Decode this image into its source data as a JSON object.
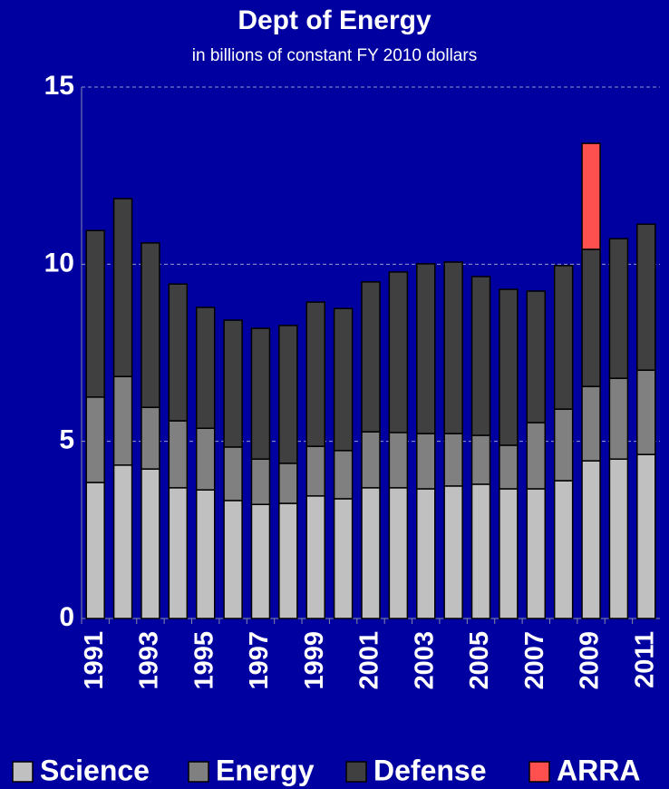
{
  "chart_data": {
    "type": "bar",
    "stacked": true,
    "title": "Dept of Energy",
    "subtitle": "in billions of constant FY 2010 dollars",
    "categories": [
      "1991",
      null,
      "1993",
      null,
      "1995",
      null,
      "1997",
      null,
      "1999",
      null,
      "2001",
      null,
      "2003",
      null,
      "2005",
      null,
      "2007",
      null,
      "2009",
      null,
      "2011"
    ],
    "series": [
      {
        "name": "Science",
        "color": "#c0c0c0",
        "values": [
          3.84,
          4.33,
          4.22,
          3.69,
          3.63,
          3.33,
          3.22,
          3.25,
          3.46,
          3.38,
          3.69,
          3.69,
          3.66,
          3.74,
          3.79,
          3.66,
          3.66,
          3.89,
          4.45,
          4.5,
          4.63
        ]
      },
      {
        "name": "Energy",
        "color": "#808080",
        "values": [
          2.41,
          2.5,
          1.74,
          1.89,
          1.74,
          1.51,
          1.28,
          1.13,
          1.4,
          1.36,
          1.58,
          1.56,
          1.56,
          1.48,
          1.38,
          1.23,
          1.87,
          2.02,
          2.1,
          2.28,
          2.38
        ]
      },
      {
        "name": "Defense",
        "color": "#404040",
        "values": [
          4.7,
          5.02,
          4.64,
          3.86,
          3.41,
          3.58,
          3.69,
          3.89,
          4.07,
          4.01,
          4.23,
          4.53,
          4.79,
          4.84,
          4.48,
          4.4,
          3.71,
          4.05,
          3.87,
          3.94,
          4.12
        ]
      },
      {
        "name": "ARRA",
        "color": "#ff5050",
        "values": [
          null,
          null,
          null,
          null,
          null,
          null,
          null,
          null,
          null,
          null,
          null,
          null,
          null,
          null,
          null,
          null,
          null,
          null,
          2.99,
          null,
          null
        ]
      }
    ],
    "ylim": [
      0,
      15
    ],
    "yticks": [
      0,
      5,
      10,
      15
    ],
    "grid": true,
    "legend": "bottom"
  }
}
